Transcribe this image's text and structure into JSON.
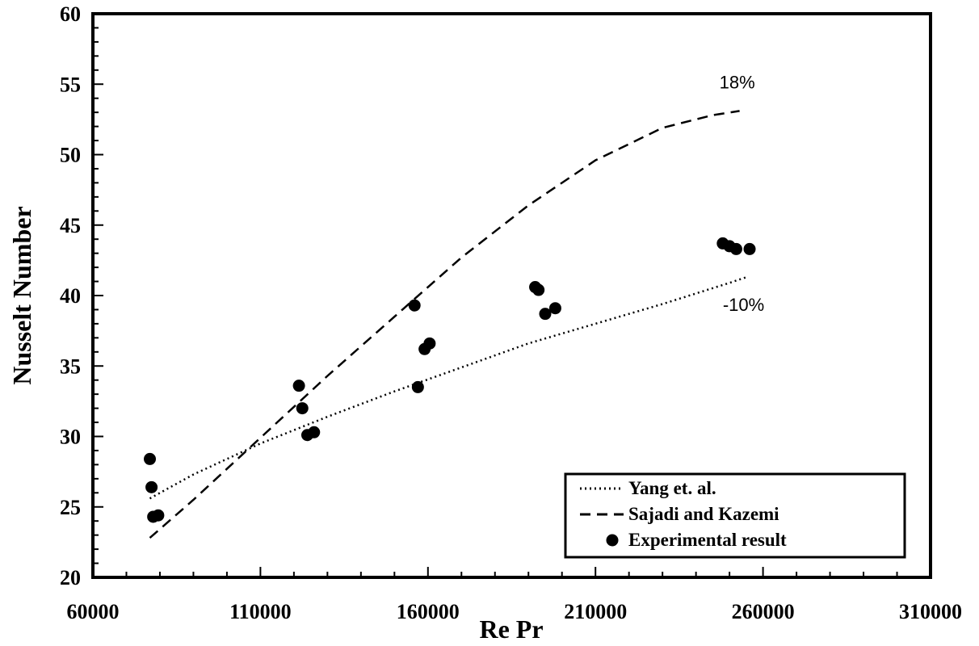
{
  "chart_data": {
    "type": "scatter",
    "xlabel": "Re Pr",
    "ylabel": "Nusselt Number",
    "xlim": [
      60000,
      310000
    ],
    "ylim": [
      20,
      60
    ],
    "x_ticks": [
      "60000",
      "110000",
      "160000",
      "210000",
      "260000",
      "310000"
    ],
    "y_ticks": [
      "20",
      "25",
      "30",
      "35",
      "40",
      "45",
      "50",
      "55",
      "60"
    ],
    "grid": false,
    "legend_position": "bottom-right",
    "series": [
      {
        "name": "Yang et. al.",
        "style": "dotted-line",
        "x": [
          77000,
          90000,
          110000,
          130000,
          150000,
          170000,
          190000,
          210000,
          230000,
          250000,
          255000
        ],
        "y": [
          25.6,
          27.3,
          29.5,
          31.4,
          33.2,
          34.9,
          36.6,
          38.0,
          39.4,
          40.9,
          41.3
        ]
      },
      {
        "name": "Sajadi and Kazemi",
        "style": "dashed-line",
        "x": [
          77000,
          90000,
          110000,
          130000,
          150000,
          170000,
          190000,
          210000,
          230000,
          245000,
          253000
        ],
        "y": [
          22.8,
          25.5,
          29.9,
          34.3,
          38.5,
          42.7,
          46.4,
          49.6,
          51.9,
          52.8,
          53.1
        ]
      },
      {
        "name": "Experimental result",
        "style": "markers",
        "x": [
          77000,
          77500,
          78000,
          79500,
          121500,
          122500,
          124000,
          126000,
          156000,
          157000,
          159000,
          160500,
          192000,
          193000,
          195000,
          198000,
          248000,
          250000,
          252000,
          256000
        ],
        "y": [
          28.4,
          26.4,
          24.3,
          24.4,
          33.6,
          32.0,
          30.1,
          30.3,
          39.3,
          33.5,
          36.2,
          36.6,
          40.6,
          40.4,
          38.7,
          39.1,
          43.7,
          43.5,
          43.3,
          43.3
        ]
      }
    ],
    "annotations": [
      {
        "text": "18%",
        "x": 247000,
        "y": 54.7
      },
      {
        "text": "-10%",
        "x": 248000,
        "y": 38.9
      }
    ]
  }
}
